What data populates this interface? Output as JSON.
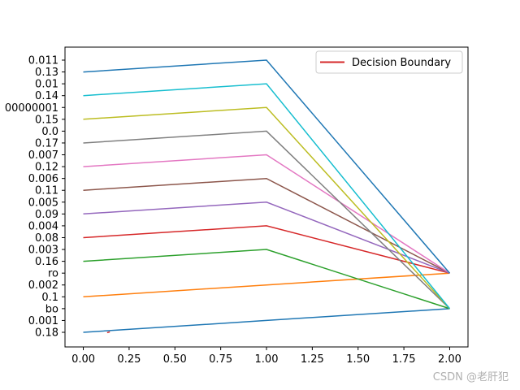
{
  "chart_data": {
    "type": "line",
    "xlim": [
      -0.1,
      2.1
    ],
    "x_ticks": [
      0.0,
      0.25,
      0.5,
      0.75,
      1.0,
      1.25,
      1.5,
      1.75,
      2.0
    ],
    "x_tick_labels": [
      "0.00",
      "0.25",
      "0.50",
      "0.75",
      "1.00",
      "1.25",
      "1.50",
      "1.75",
      "2.00"
    ],
    "y_categories": [
      "0.18",
      "0.001",
      "bo",
      "0.1",
      "0.002",
      "ro",
      "0.16",
      "0.003",
      "0.08",
      "0.004",
      "0.09",
      "0.005",
      "0.11",
      "0.006",
      "0.12",
      "0.007",
      "0.17",
      "0.0",
      "0.15",
      "00000001",
      "0.14",
      "0.01",
      "0.13",
      "0.011"
    ],
    "x": [
      0,
      1,
      2
    ],
    "series": [
      {
        "color": "#1f77b4",
        "values": [
          "0.18",
          "0.001",
          "bo"
        ]
      },
      {
        "color": "#ff7f0e",
        "values": [
          "0.1",
          "0.002",
          "ro"
        ]
      },
      {
        "color": "#2ca02c",
        "values": [
          "0.16",
          "0.003",
          "bo"
        ]
      },
      {
        "color": "#d62728",
        "values": [
          "0.08",
          "0.004",
          "ro"
        ]
      },
      {
        "color": "#9467bd",
        "values": [
          "0.09",
          "0.005",
          "ro"
        ]
      },
      {
        "color": "#8c564b",
        "values": [
          "0.11",
          "0.006",
          "ro"
        ]
      },
      {
        "color": "#e377c2",
        "values": [
          "0.12",
          "0.007",
          "ro"
        ]
      },
      {
        "color": "#7f7f7f",
        "values": [
          "0.17",
          "0.0",
          "bo"
        ]
      },
      {
        "color": "#bcbd22",
        "values": [
          "0.15",
          "00000001",
          "bo"
        ]
      },
      {
        "color": "#17becf",
        "values": [
          "0.14",
          "0.01",
          "bo"
        ]
      },
      {
        "color": "#1f77b4",
        "values": [
          "0.13",
          "0.011",
          "ro"
        ]
      }
    ],
    "decision_boundary": {
      "name": "Decision Boundary",
      "color": "#d62728",
      "x": [
        0.13,
        0.145
      ],
      "y_category": "0.18",
      "y_offset": [
        -0.03,
        0.04
      ]
    },
    "legend": {
      "placement": "top-right",
      "entries": [
        "Decision Boundary"
      ]
    },
    "grid": false
  },
  "watermark": "CSDN @老肝犯"
}
